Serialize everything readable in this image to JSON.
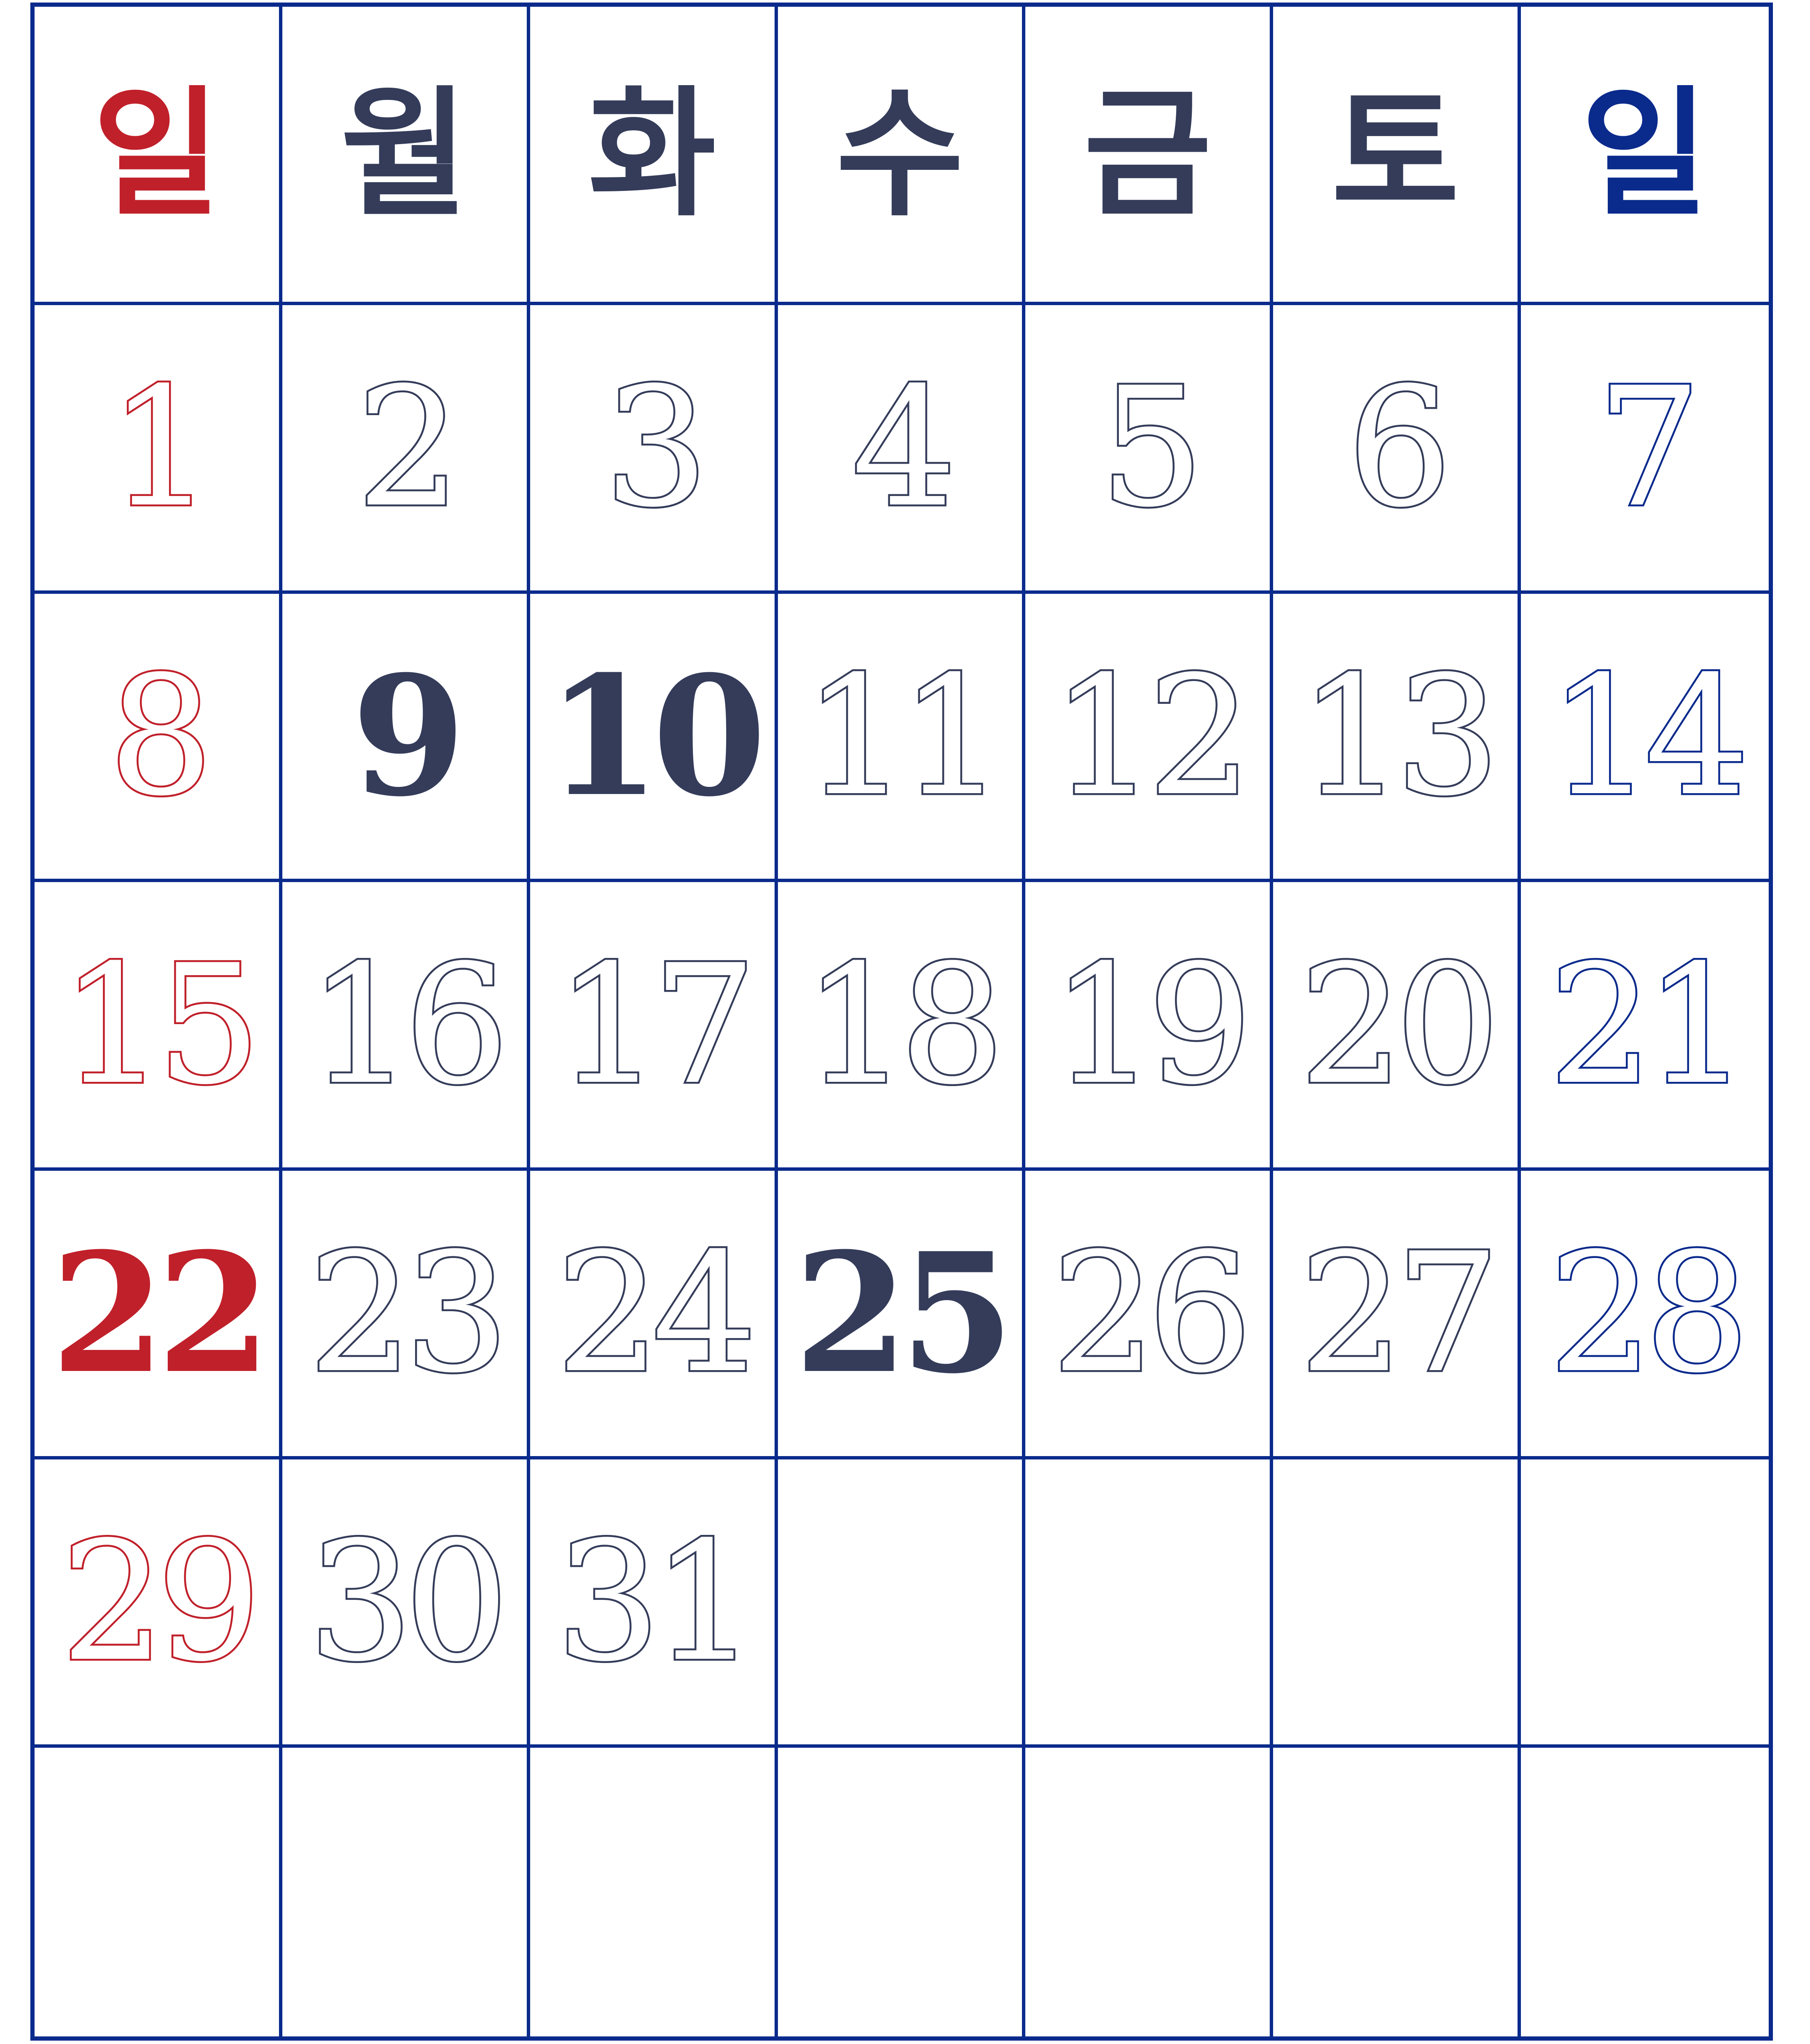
{
  "colors": {
    "grid": "#0a2a8c",
    "sunday": "#c0202a",
    "weekday": "#343c5a",
    "end": "#0a2a8c"
  },
  "header": [
    {
      "label": "일",
      "tone": "sunday"
    },
    {
      "label": "월",
      "tone": "weekday"
    },
    {
      "label": "화",
      "tone": "weekday"
    },
    {
      "label": "수",
      "tone": "weekday"
    },
    {
      "label": "금",
      "tone": "weekday"
    },
    {
      "label": "토",
      "tone": "weekday"
    },
    {
      "label": "일",
      "tone": "end"
    }
  ],
  "weeks": [
    [
      {
        "d": "1",
        "s": "outline"
      },
      {
        "d": "2",
        "s": "outline"
      },
      {
        "d": "3",
        "s": "outline"
      },
      {
        "d": "4",
        "s": "outline"
      },
      {
        "d": "5",
        "s": "outline"
      },
      {
        "d": "6",
        "s": "outline"
      },
      {
        "d": "7",
        "s": "outline"
      }
    ],
    [
      {
        "d": "8",
        "s": "outline"
      },
      {
        "d": "9",
        "s": "solid"
      },
      {
        "d": "10",
        "s": "solid"
      },
      {
        "d": "11",
        "s": "outline"
      },
      {
        "d": "12",
        "s": "outline"
      },
      {
        "d": "13",
        "s": "outline"
      },
      {
        "d": "14",
        "s": "outline"
      }
    ],
    [
      {
        "d": "15",
        "s": "outline"
      },
      {
        "d": "16",
        "s": "outline"
      },
      {
        "d": "17",
        "s": "outline"
      },
      {
        "d": "18",
        "s": "outline"
      },
      {
        "d": "19",
        "s": "outline"
      },
      {
        "d": "20",
        "s": "outline"
      },
      {
        "d": "21",
        "s": "outline"
      }
    ],
    [
      {
        "d": "22",
        "s": "solid"
      },
      {
        "d": "23",
        "s": "outline"
      },
      {
        "d": "24",
        "s": "outline"
      },
      {
        "d": "25",
        "s": "solid"
      },
      {
        "d": "26",
        "s": "outline"
      },
      {
        "d": "27",
        "s": "outline"
      },
      {
        "d": "28",
        "s": "outline"
      }
    ],
    [
      {
        "d": "29",
        "s": "outline"
      },
      {
        "d": "30",
        "s": "outline"
      },
      {
        "d": "31",
        "s": "outline"
      },
      {
        "d": "",
        "s": "outline"
      },
      {
        "d": "",
        "s": "outline"
      },
      {
        "d": "",
        "s": "outline"
      },
      {
        "d": "",
        "s": "outline"
      }
    ]
  ]
}
